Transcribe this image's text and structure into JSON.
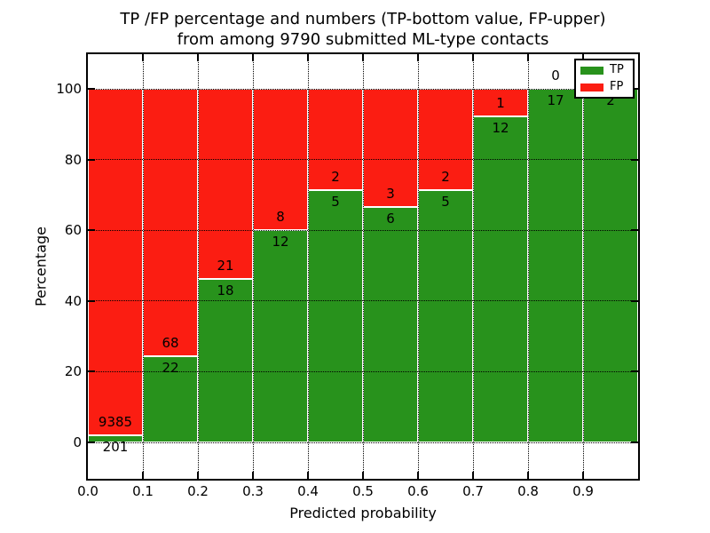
{
  "title": {
    "line1": "TP /FP percentage and numbers (TP-bottom value, FP-upper)",
    "line2": "from among 9790 submitted ML-type contacts"
  },
  "axes": {
    "xlabel": "Predicted probability",
    "ylabel": "Percentage",
    "x_tick_labels": [
      "0.0",
      "0.1",
      "0.2",
      "0.3",
      "0.4",
      "0.5",
      "0.6",
      "0.7",
      "0.8",
      "0.9"
    ],
    "y_tick_labels": [
      "0",
      "20",
      "40",
      "60",
      "80",
      "100"
    ],
    "y_tick_values": [
      0,
      20,
      40,
      60,
      80,
      100
    ],
    "grid_style": "dotted"
  },
  "legend": {
    "position": "upper right",
    "items": [
      {
        "label": "TP",
        "color": "#28921c"
      },
      {
        "label": "FP",
        "color": "#fb1d12"
      }
    ]
  },
  "chart_data": {
    "type": "bar",
    "subtype": "stacked-100-percent",
    "title": "TP /FP percentage and numbers (TP-bottom value, FP-upper) from among 9790 submitted ML-type contacts",
    "xlabel": "Predicted probability",
    "ylabel": "Percentage",
    "xlim": [
      0.0,
      1.0
    ],
    "ylim": [
      -10.3,
      109.8
    ],
    "grid": true,
    "legend_position": "upper right",
    "total_contacts": 9790,
    "bin_width": 0.1,
    "bins": [
      {
        "range": [
          0.0,
          0.1
        ],
        "tp": 201,
        "fp": 9385,
        "tp_pct": 2.1,
        "fp_pct": 97.9
      },
      {
        "range": [
          0.1,
          0.2
        ],
        "tp": 22,
        "fp": 68,
        "tp_pct": 24.4,
        "fp_pct": 75.6
      },
      {
        "range": [
          0.2,
          0.3
        ],
        "tp": 18,
        "fp": 21,
        "tp_pct": 46.2,
        "fp_pct": 53.8
      },
      {
        "range": [
          0.3,
          0.4
        ],
        "tp": 12,
        "fp": 8,
        "tp_pct": 60.0,
        "fp_pct": 40.0
      },
      {
        "range": [
          0.4,
          0.5
        ],
        "tp": 5,
        "fp": 2,
        "tp_pct": 71.4,
        "fp_pct": 28.6
      },
      {
        "range": [
          0.5,
          0.6
        ],
        "tp": 6,
        "fp": 3,
        "tp_pct": 66.7,
        "fp_pct": 33.3
      },
      {
        "range": [
          0.6,
          0.7
        ],
        "tp": 5,
        "fp": 2,
        "tp_pct": 71.4,
        "fp_pct": 28.6
      },
      {
        "range": [
          0.7,
          0.8
        ],
        "tp": 12,
        "fp": 1,
        "tp_pct": 92.3,
        "fp_pct": 7.7
      },
      {
        "range": [
          0.8,
          0.9
        ],
        "tp": 17,
        "fp": 0,
        "tp_pct": 100.0,
        "fp_pct": 0.0
      },
      {
        "range": [
          0.9,
          1.0
        ],
        "tp": 2,
        "fp": 0,
        "tp_pct": 100.0,
        "fp_pct": 0.0
      }
    ],
    "series": [
      {
        "name": "TP",
        "color": "#28921c",
        "values": [
          201,
          22,
          18,
          12,
          5,
          6,
          5,
          12,
          17,
          2
        ]
      },
      {
        "name": "FP",
        "color": "#fb1d12",
        "values": [
          9385,
          68,
          21,
          8,
          2,
          3,
          2,
          1,
          0,
          0
        ]
      }
    ]
  }
}
